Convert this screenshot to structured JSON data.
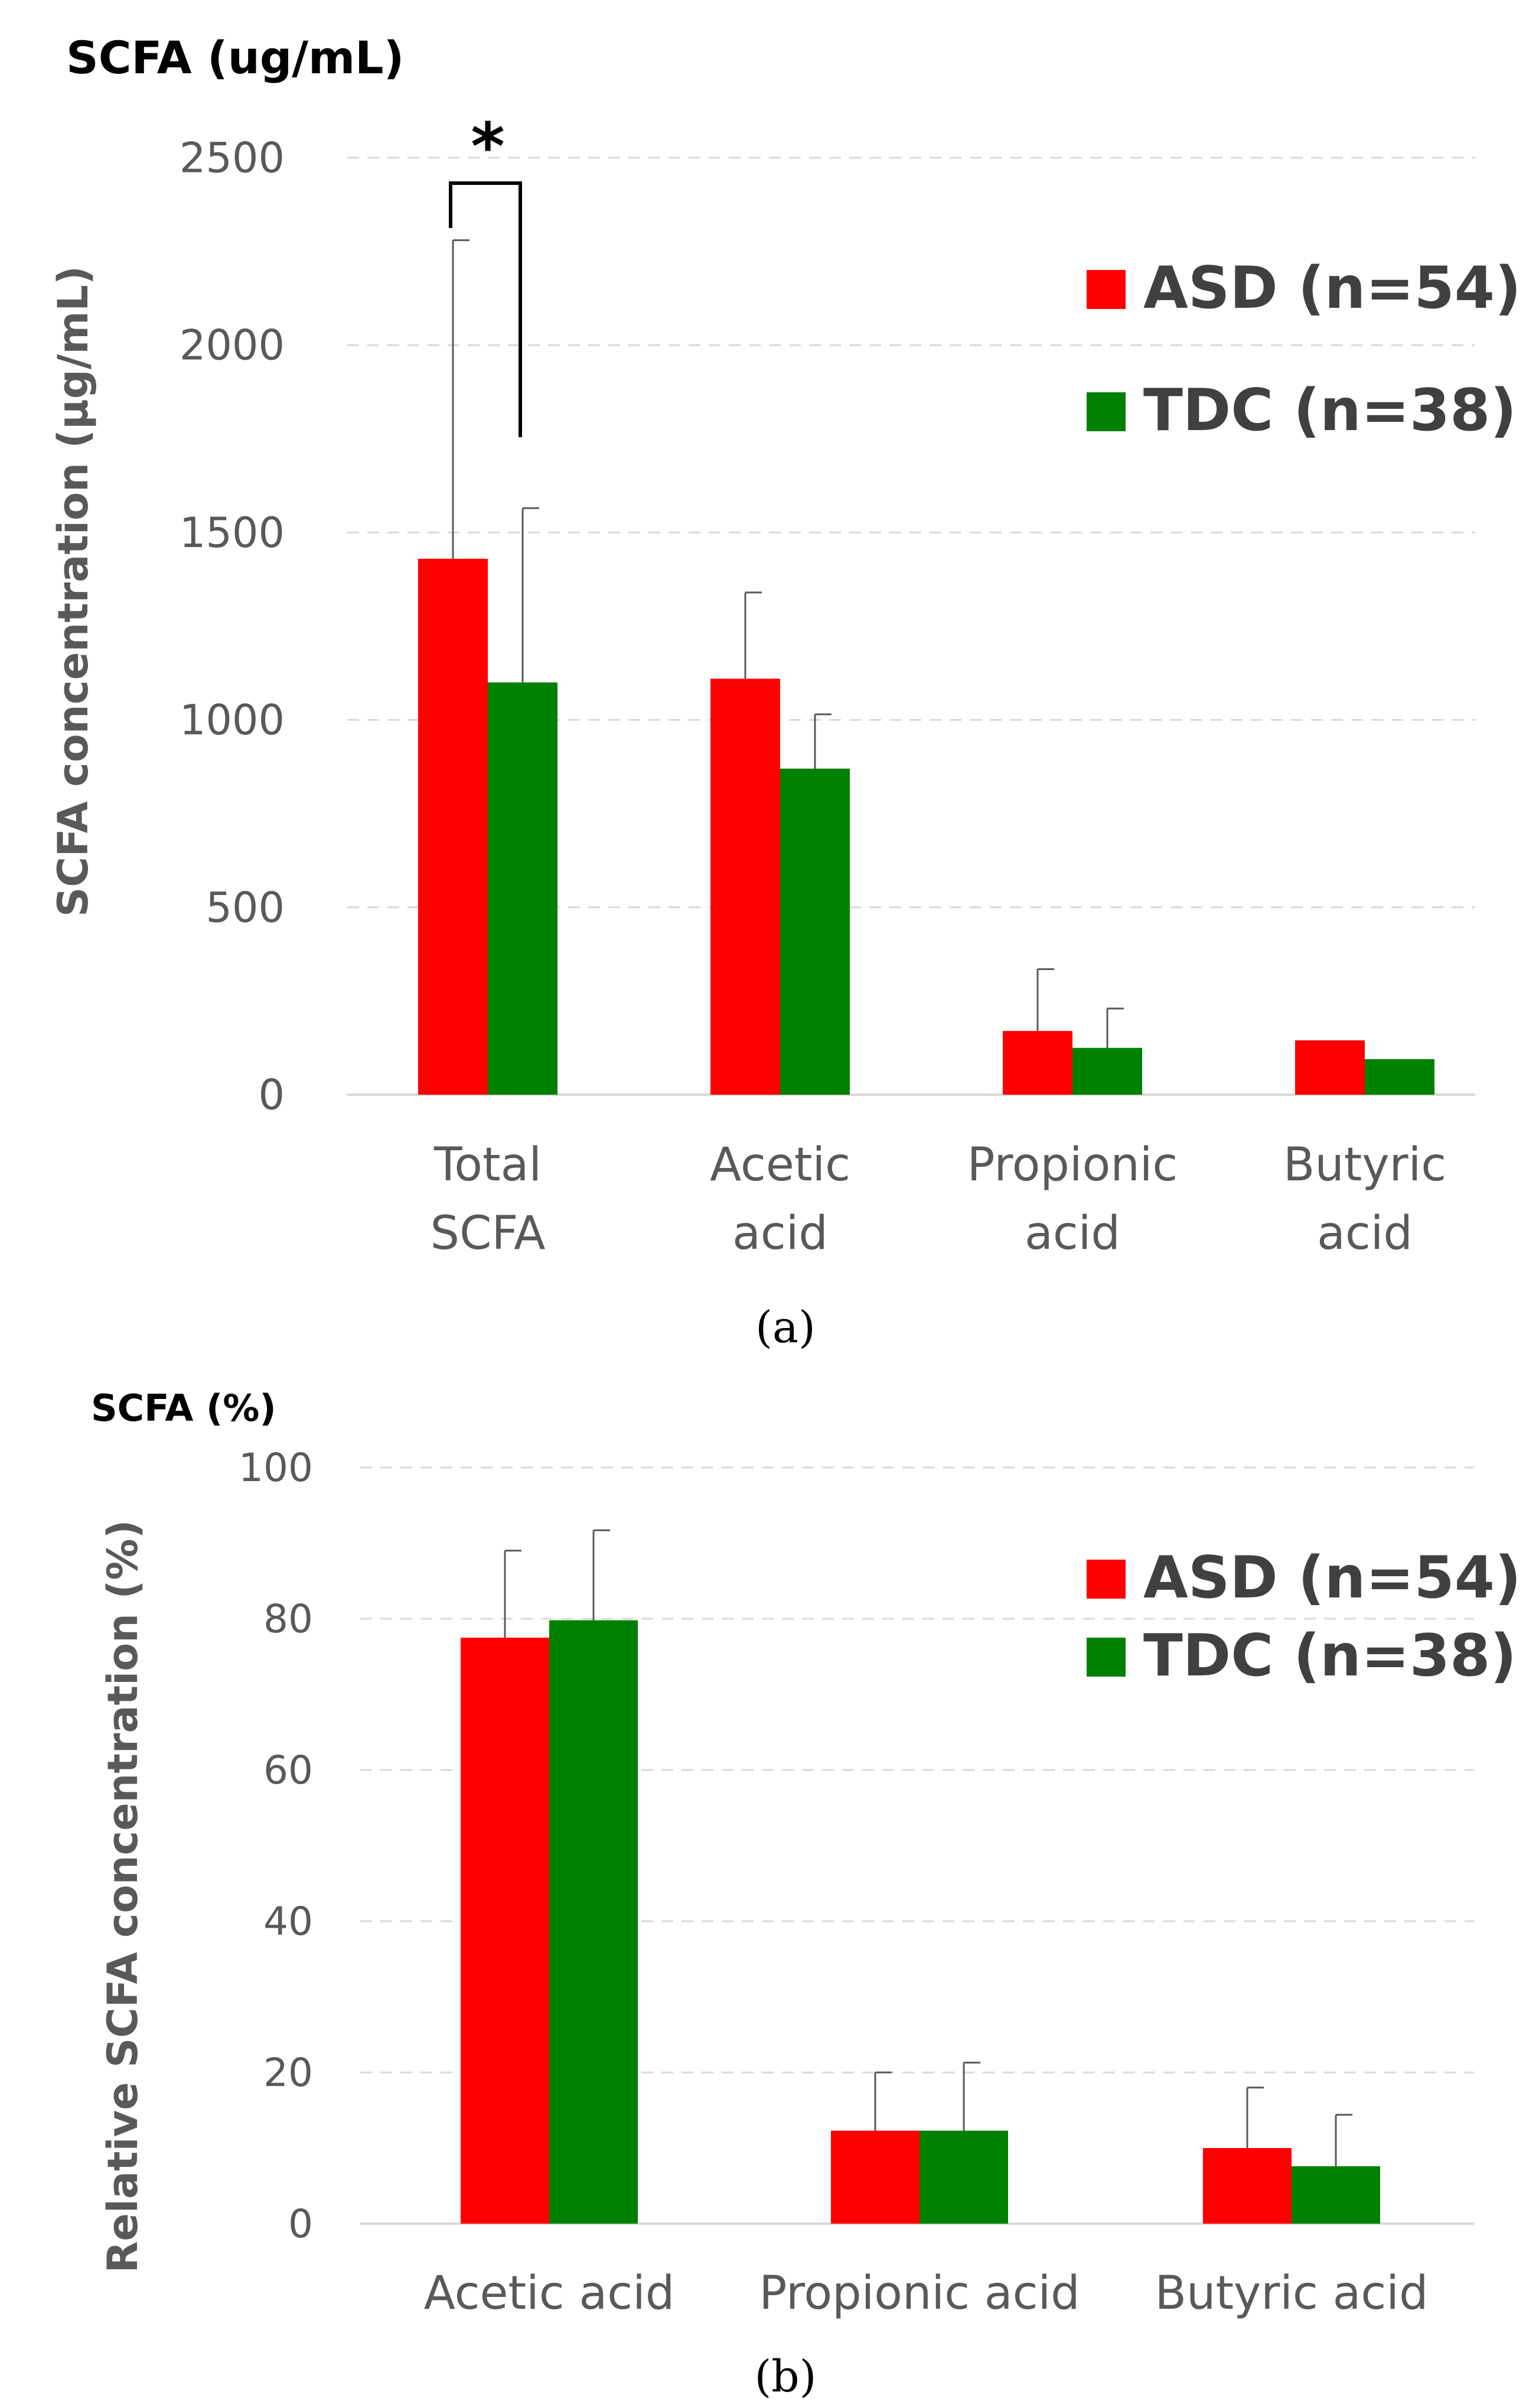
{
  "colors": {
    "ASD": "#ff0000",
    "TDC": "#008000"
  },
  "panel_a": {
    "unit_label": "SCFA (ug/mL)",
    "panel_label": "(a)",
    "significance_mark": "*",
    "legend": [
      "ASD (n=54)",
      "TDC (n=38)"
    ]
  },
  "panel_b": {
    "unit_label": "SCFA (%)",
    "panel_label": "(b)",
    "legend": [
      "ASD (n=54)",
      "TDC (n=38)"
    ]
  },
  "chart_data": [
    {
      "type": "bar",
      "title": "",
      "xlabel": "",
      "ylabel": "SCFA concentration (µg/mL)",
      "ylim": [
        0,
        2500
      ],
      "yticks": [
        0,
        500,
        1000,
        1500,
        2000,
        2500
      ],
      "grid": true,
      "legend_position": "top-right",
      "categories": [
        [
          "Total",
          "SCFA"
        ],
        [
          "Acetic",
          "acid"
        ],
        [
          "Propionic",
          "acid"
        ],
        [
          "Butyric",
          "acid"
        ]
      ],
      "series": [
        {
          "name": "ASD (n=54)",
          "values": [
            1430,
            1110,
            170,
            145
          ],
          "errors": [
            850,
            230,
            165,
            0
          ]
        },
        {
          "name": "TDC (n=38)",
          "values": [
            1100,
            870,
            125,
            95
          ],
          "errors": [
            465,
            145,
            105,
            0
          ]
        }
      ],
      "annotations": [
        {
          "text": "*",
          "between": [
            "ASD (n=54)",
            "TDC (n=38)"
          ],
          "category": 0
        }
      ]
    },
    {
      "type": "bar",
      "title": "",
      "xlabel": "",
      "ylabel": "Relative SCFA concentration (%)",
      "ylim": [
        0,
        100
      ],
      "yticks": [
        0,
        20,
        40,
        60,
        80,
        100
      ],
      "grid": true,
      "legend_position": "top-right",
      "categories": [
        [
          "Acetic acid"
        ],
        [
          "Propionic acid"
        ],
        [
          "Butyric acid"
        ]
      ],
      "series": [
        {
          "name": "ASD (n=54)",
          "values": [
            77.5,
            12.3,
            10
          ],
          "errors": [
            11.5,
            7.7,
            8
          ]
        },
        {
          "name": "TDC (n=38)",
          "values": [
            79.8,
            12.3,
            7.6
          ],
          "errors": [
            11.9,
            9,
            6.8
          ]
        }
      ]
    }
  ]
}
